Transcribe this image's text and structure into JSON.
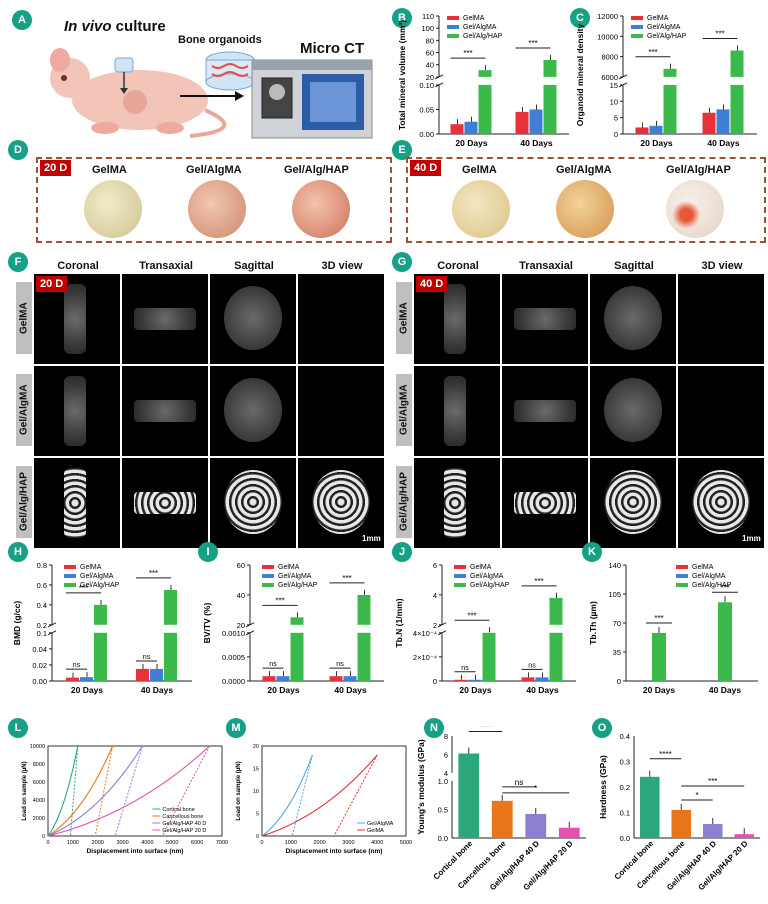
{
  "panel_labels": [
    "A",
    "B",
    "C",
    "D",
    "E",
    "F",
    "G",
    "H",
    "I",
    "J",
    "K",
    "L",
    "M",
    "N",
    "O"
  ],
  "schematic": {
    "title_italic": "In vivo",
    "title_rest": " culture",
    "organoids_label": "Bone organoids",
    "microct_label": "Micro CT"
  },
  "petri": {
    "tag_20": "20 D",
    "tag_40": "40 D",
    "labels": [
      "GelMA",
      "Gel/AlgMA",
      "Gel/Alg/HAP"
    ]
  },
  "ct": {
    "tag_20": "20 D",
    "tag_40": "40 D",
    "columns": [
      "Coronal",
      "Transaxial",
      "Sagittal",
      "3D view"
    ],
    "rows": [
      "GelMA",
      "Gel/AlgMA",
      "Gel/Alg/HAP"
    ],
    "scale_bar": "1mm"
  },
  "colors": {
    "GelMA": "#e8313a",
    "Gel/AlgMA": "#3f7fd6",
    "Gel/Alg/HAP": "#3cb94b",
    "cortical": "#2aa87c",
    "cancellous": "#e8751a",
    "hap40": "#8a7fd0",
    "hap20": "#e84fb0",
    "accent": "#16a085"
  },
  "chart_data": [
    {
      "id": "B",
      "type": "bar",
      "broken_axis": true,
      "categories": [
        "20 Days",
        "40 Days"
      ],
      "ylabel": "Total mineral volume (mm³)",
      "legend": [
        "GelMA",
        "Gel/AlgMA",
        "Gel/Alg/HAP"
      ],
      "series": [
        {
          "name": "GelMA",
          "values": [
            0.02,
            0.045
          ]
        },
        {
          "name": "Gel/AlgMA",
          "values": [
            0.025,
            0.05
          ]
        },
        {
          "name": "Gel/Alg/HAP",
          "values": [
            30,
            45
          ]
        }
      ],
      "ticks_low": [
        "0.00",
        "0.05",
        "0.10"
      ],
      "ticks_high": [
        "20",
        "40",
        "60",
        "80",
        "100",
        "110"
      ],
      "significance": [
        "***",
        "***",
        "***",
        "***"
      ]
    },
    {
      "id": "C",
      "type": "bar",
      "broken_axis": true,
      "categories": [
        "20 Days",
        "40 Days"
      ],
      "ylabel": "Organoid mineral density",
      "legend": [
        "GelMA",
        "Gel/AlgMA",
        "Gel/Alg/HAP"
      ],
      "series": [
        {
          "name": "GelMA",
          "values": [
            2,
            6.5
          ]
        },
        {
          "name": "Gel/AlgMA",
          "values": [
            2.5,
            7.5
          ]
        },
        {
          "name": "Gel/Alg/HAP",
          "values": [
            6800,
            8600
          ]
        }
      ],
      "ticks_low": [
        "0",
        "5",
        "10",
        "15"
      ],
      "ticks_high": [
        "6000",
        "8000",
        "10000",
        "12000"
      ],
      "significance": [
        "***",
        "***",
        "***",
        "***"
      ]
    },
    {
      "id": "H",
      "type": "bar",
      "broken_axis": true,
      "categories": [
        "20 Days",
        "40 Days"
      ],
      "ylabel": "BMD (g/cc)",
      "legend": [
        "GelMA",
        "Gel/AlgMA",
        "Gel/Alg/HAP"
      ],
      "series": [
        {
          "name": "GelMA",
          "values": [
            0.007,
            0.025
          ]
        },
        {
          "name": "Gel/AlgMA",
          "values": [
            0.008,
            0.025
          ]
        },
        {
          "name": "Gel/Alg/HAP",
          "values": [
            0.4,
            0.55
          ]
        }
      ],
      "ticks_low": [
        "0.00",
        "0.02",
        "0.04",
        "0.1"
      ],
      "ticks_high": [
        "0.2",
        "0.4",
        "0.6",
        "0.8"
      ],
      "significance": [
        "ns",
        "***",
        "ns",
        "***"
      ]
    },
    {
      "id": "I",
      "type": "bar",
      "broken_axis": true,
      "categories": [
        "20 Days",
        "40 Days"
      ],
      "ylabel": "BV/TV (%)",
      "legend": [
        "GelMA",
        "Gel/AlgMA",
        "Gel/Alg/HAP"
      ],
      "series": [
        {
          "name": "GelMA",
          "values": [
            0.0001,
            0.0001
          ]
        },
        {
          "name": "Gel/AlgMA",
          "values": [
            0.0001,
            0.0001
          ]
        },
        {
          "name": "Gel/Alg/HAP",
          "values": [
            25,
            40
          ]
        }
      ],
      "ticks_low": [
        "0.0000",
        "0.0005",
        "0.0010"
      ],
      "ticks_high": [
        "20",
        "40",
        "60"
      ],
      "significance": [
        "ns",
        "***",
        "ns",
        "***"
      ]
    },
    {
      "id": "J",
      "type": "bar",
      "broken_axis": true,
      "categories": [
        "20 Days",
        "40 Days"
      ],
      "ylabel": "Tb.N (1/mm)",
      "legend": [
        "GelMA",
        "Gel/AlgMA",
        "Gel/Alg/HAP"
      ],
      "series": [
        {
          "name": "GelMA",
          "values": [
            1e-05,
            3e-05
          ]
        },
        {
          "name": "Gel/AlgMA",
          "values": [
            1e-05,
            3e-05
          ]
        },
        {
          "name": "Gel/Alg/HAP",
          "values": [
            1.5,
            3.8
          ]
        }
      ],
      "ticks_low": [
        "0",
        "2×10⁻⁴",
        "4×10⁻⁴"
      ],
      "ticks_high": [
        "2",
        "4",
        "6"
      ],
      "significance": [
        "ns",
        "***",
        "ns",
        "***"
      ]
    },
    {
      "id": "K",
      "type": "bar",
      "categories": [
        "20 Days",
        "40 Days"
      ],
      "ylabel": "Tb.Th (µm)",
      "legend": [
        "GelMA",
        "Gel/AlgMA",
        "Gel/Alg/HAP"
      ],
      "series": [
        {
          "name": "GelMA",
          "values": [
            0,
            0
          ]
        },
        {
          "name": "Gel/AlgMA",
          "values": [
            0,
            0
          ]
        },
        {
          "name": "Gel/Alg/HAP",
          "values": [
            58,
            95
          ]
        }
      ],
      "ylim": [
        0,
        140
      ],
      "ticks": [
        "0",
        "35",
        "70",
        "105",
        "140"
      ],
      "significance": [
        "***",
        "***"
      ]
    },
    {
      "id": "L",
      "type": "line",
      "xlabel": "Displacement into surface (nm)",
      "ylabel": "Load on sample (µN)",
      "xticks": [
        "0",
        "1000",
        "2000",
        "3000",
        "4000",
        "5000",
        "6000",
        "7000"
      ],
      "yticks": [
        "0",
        "2000",
        "4000",
        "6000",
        "8000",
        "10000"
      ],
      "legend": [
        "Cortical bone",
        "Cancellous bone",
        "Gel/Alg/HAP 40 D",
        "Gel/Alg/HAP 20 D"
      ],
      "series": [
        {
          "name": "Cortical bone",
          "load": [
            [
              0,
              0
            ],
            [
              1200,
              10000
            ]
          ],
          "unload": [
            [
              1200,
              10000
            ],
            [
              900,
              0
            ]
          ]
        },
        {
          "name": "Cancellous bone",
          "load": [
            [
              0,
              0
            ],
            [
              2600,
              10000
            ]
          ],
          "unload": [
            [
              2600,
              10000
            ],
            [
              1900,
              0
            ]
          ]
        },
        {
          "name": "Gel/Alg/HAP 40 D",
          "load": [
            [
              0,
              0
            ],
            [
              3800,
              10000
            ]
          ],
          "unload": [
            [
              3800,
              10000
            ],
            [
              2700,
              0
            ]
          ]
        },
        {
          "name": "Gel/Alg/HAP 20 D",
          "load": [
            [
              0,
              0
            ],
            [
              6500,
              10000
            ]
          ],
          "unload": [
            [
              6500,
              10000
            ],
            [
              4600,
              0
            ]
          ]
        }
      ]
    },
    {
      "id": "M",
      "type": "line",
      "xlabel": "Displacement into surface (nm)",
      "ylabel": "Load on sample (µN)",
      "xticks": [
        "0",
        "1000",
        "2000",
        "3000",
        "4000",
        "5000"
      ],
      "yticks": [
        "0",
        "5",
        "10",
        "15",
        "20"
      ],
      "legend": [
        "Gel/AlgMA",
        "GelMA"
      ],
      "series": [
        {
          "name": "Gel/AlgMA",
          "load": [
            [
              0,
              0
            ],
            [
              1750,
              18
            ]
          ],
          "unload": [
            [
              1750,
              18
            ],
            [
              1050,
              0
            ]
          ]
        },
        {
          "name": "GelMA",
          "load": [
            [
              0,
              0
            ],
            [
              4000,
              18
            ]
          ],
          "unload": [
            [
              4000,
              18
            ],
            [
              2500,
              0
            ]
          ]
        }
      ]
    },
    {
      "id": "N",
      "type": "bar",
      "broken_axis": true,
      "categories": [
        "Cortical bone",
        "Cancellous bone",
        "Gel/Alg/HAP 40 D",
        "Gel/Alg/HAP 20 D"
      ],
      "ylabel": "Young's modulus (GPa)",
      "values": [
        6.1,
        0.65,
        0.42,
        0.18
      ],
      "ticks_low": [
        "0.0",
        "0.5",
        "1.0"
      ],
      "ticks_high": [
        "4",
        "6",
        "8"
      ],
      "significance": [
        "****",
        "ns",
        "*"
      ]
    },
    {
      "id": "O",
      "type": "bar",
      "categories": [
        "Cortical bone",
        "Cancellous bone",
        "Gel/Alg/HAP 40 D",
        "Gel/Alg/HAP 20 D"
      ],
      "ylabel": "Hardness (GPa)",
      "values": [
        0.24,
        0.11,
        0.055,
        0.015
      ],
      "ylim": [
        0,
        0.4
      ],
      "ticks": [
        "0.0",
        "0.1",
        "0.2",
        "0.3",
        "0.4"
      ],
      "significance": [
        "****",
        "*",
        "***"
      ]
    }
  ]
}
